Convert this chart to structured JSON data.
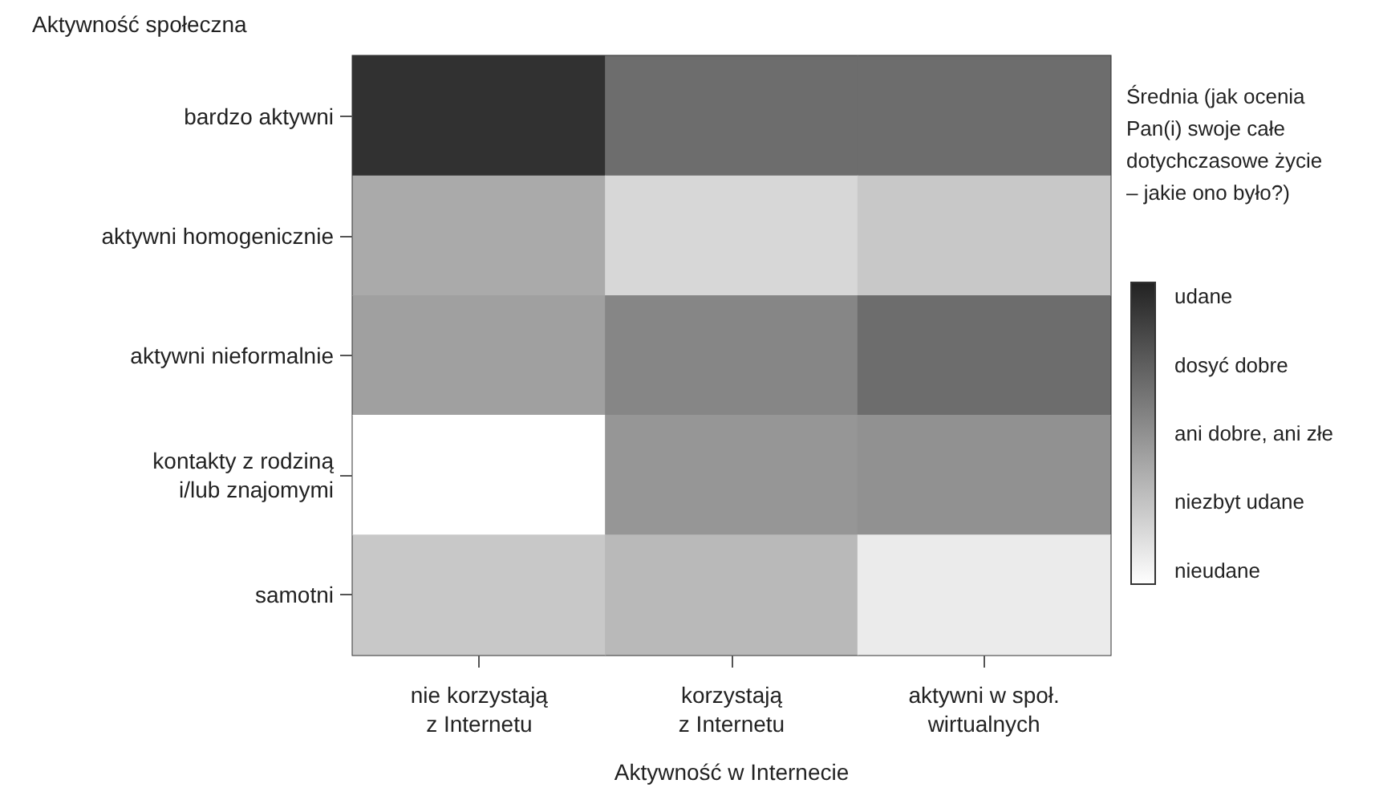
{
  "chart_data": {
    "type": "heatmap",
    "xlabel": "Aktywność w Internecie",
    "ylabel": "Aktywność społeczna",
    "clabel": "Średnia (jak ocenia Pan(i) swoje całe dotychczasowe życie – jakie ono było?)",
    "categories": [
      "nie korzystają\nz Internetu",
      "korzystają\nz Internetu",
      "aktywni w społ.\nwirtualnych"
    ],
    "y_categories": [
      "bardzo aktywni",
      "aktywni homogenicznie",
      "aktywni nieformalnie",
      "kontakty z rodziną\ni/lub znajomymi",
      "samotni"
    ],
    "cells": [
      [
        4.9,
        3.7,
        3.7
      ],
      [
        2.5,
        1.6,
        1.9
      ],
      [
        2.7,
        3.2,
        3.7
      ],
      [
        0.8,
        2.9,
        3.0
      ],
      [
        1.9,
        2.2,
        1.2
      ]
    ],
    "clim": [
      0.8,
      5.2
    ],
    "cticks": [
      {
        "value": 5,
        "label": "udane"
      },
      {
        "value": 4,
        "label": "dosyć dobre"
      },
      {
        "value": 3,
        "label": "ani dobre, ani złe"
      },
      {
        "value": 2,
        "label": "niezbyt udane"
      },
      {
        "value": 1,
        "label": "nieudane"
      }
    ]
  }
}
